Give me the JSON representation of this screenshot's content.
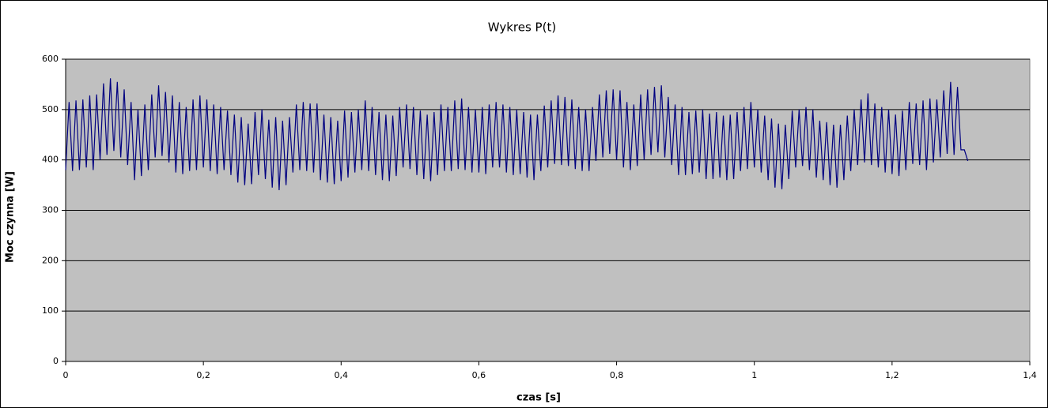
{
  "chart_data": {
    "type": "line",
    "title": "Wykres P(t)",
    "x_label": "czas [s]",
    "y_label": "Moc czynna [W]",
    "color": "#000080",
    "grid": true,
    "xlim": [
      0,
      1.4
    ],
    "xticks": [
      0,
      {
        "value": 0.2,
        "label": "0,2"
      },
      {
        "value": 0.4,
        "label": "0,4"
      },
      {
        "value": 0.6,
        "label": "0,6"
      },
      {
        "value": 0.8,
        "label": "0,8"
      },
      1,
      {
        "value": 1.2,
        "label": "1,2"
      },
      {
        "value": 1.4,
        "label": "1,4"
      }
    ],
    "ylim": [
      0,
      600
    ],
    "yticks": [
      0,
      100,
      200,
      300,
      400,
      500,
      600
    ],
    "x": [
      0,
      0.005,
      0.01,
      0.015,
      0.02,
      0.025,
      0.03,
      0.035,
      0.04,
      0.045,
      0.05,
      0.055,
      0.06,
      0.065,
      0.07,
      0.075,
      0.08,
      0.085,
      0.09,
      0.095,
      0.1,
      0.105,
      0.11,
      0.115,
      0.12,
      0.125,
      0.13,
      0.135,
      0.14,
      0.145,
      0.15,
      0.155,
      0.16,
      0.165,
      0.17,
      0.175,
      0.18,
      0.185,
      0.19,
      0.195,
      0.2,
      0.205,
      0.21,
      0.215,
      0.22,
      0.225,
      0.23,
      0.235,
      0.24,
      0.245,
      0.25,
      0.255,
      0.26,
      0.265,
      0.27,
      0.275,
      0.28,
      0.285,
      0.29,
      0.295,
      0.3,
      0.305,
      0.31,
      0.315,
      0.32,
      0.325,
      0.33,
      0.335,
      0.34,
      0.345,
      0.35,
      0.355,
      0.36,
      0.365,
      0.37,
      0.375,
      0.38,
      0.385,
      0.39,
      0.395,
      0.4,
      0.405,
      0.41,
      0.415,
      0.42,
      0.425,
      0.43,
      0.435,
      0.44,
      0.445,
      0.45,
      0.455,
      0.46,
      0.465,
      0.47,
      0.475,
      0.48,
      0.485,
      0.49,
      0.495,
      0.5,
      0.505,
      0.51,
      0.515,
      0.52,
      0.525,
      0.53,
      0.535,
      0.54,
      0.545,
      0.55,
      0.555,
      0.56,
      0.565,
      0.57,
      0.575,
      0.58,
      0.585,
      0.59,
      0.595,
      0.6,
      0.605,
      0.61,
      0.615,
      0.62,
      0.625,
      0.63,
      0.635,
      0.64,
      0.645,
      0.65,
      0.655,
      0.66,
      0.665,
      0.67,
      0.675,
      0.68,
      0.685,
      0.69,
      0.695,
      0.7,
      0.705,
      0.71,
      0.715,
      0.72,
      0.725,
      0.73,
      0.735,
      0.74,
      0.745,
      0.75,
      0.755,
      0.76,
      0.765,
      0.77,
      0.775,
      0.78,
      0.785,
      0.79,
      0.795,
      0.8,
      0.805,
      0.81,
      0.815,
      0.82,
      0.825,
      0.83,
      0.835,
      0.84,
      0.845,
      0.85,
      0.855,
      0.86,
      0.865,
      0.87,
      0.875,
      0.88,
      0.885,
      0.89,
      0.895,
      0.9,
      0.905,
      0.91,
      0.915,
      0.92,
      0.925,
      0.93,
      0.935,
      0.94,
      0.945,
      0.95,
      0.955,
      0.96,
      0.965,
      0.97,
      0.975,
      0.98,
      0.985,
      0.99,
      0.995,
      1,
      1.005,
      1.01,
      1.015,
      1.02,
      1.025,
      1.03,
      1.035,
      1.04,
      1.045,
      1.05,
      1.055,
      1.06,
      1.065,
      1.07,
      1.075,
      1.08,
      1.085,
      1.09,
      1.095,
      1.1,
      1.105,
      1.11,
      1.115,
      1.12,
      1.125,
      1.13,
      1.135,
      1.14,
      1.145,
      1.15,
      1.155,
      1.16,
      1.165,
      1.17,
      1.175,
      1.18,
      1.185,
      1.19,
      1.195,
      1.2,
      1.205,
      1.21,
      1.215,
      1.22,
      1.225,
      1.23,
      1.235,
      1.24,
      1.245,
      1.25,
      1.255,
      1.26,
      1.265,
      1.27,
      1.275,
      1.28,
      1.285,
      1.29,
      1.295,
      1.3,
      1.305,
      1.31
    ],
    "values": [
      380,
      515,
      378,
      518,
      380,
      520,
      385,
      528,
      380,
      530,
      400,
      552,
      410,
      562,
      418,
      555,
      405,
      540,
      390,
      515,
      360,
      500,
      368,
      510,
      380,
      530,
      405,
      548,
      408,
      535,
      395,
      528,
      375,
      515,
      372,
      505,
      378,
      520,
      380,
      528,
      385,
      520,
      378,
      510,
      372,
      505,
      380,
      498,
      370,
      490,
      355,
      485,
      350,
      472,
      352,
      495,
      370,
      500,
      362,
      480,
      345,
      485,
      340,
      478,
      350,
      485,
      375,
      510,
      380,
      515,
      378,
      512,
      375,
      512,
      360,
      490,
      355,
      485,
      352,
      478,
      358,
      498,
      365,
      495,
      375,
      500,
      380,
      518,
      378,
      505,
      370,
      495,
      360,
      490,
      358,
      488,
      368,
      505,
      385,
      510,
      382,
      505,
      370,
      498,
      362,
      490,
      358,
      495,
      370,
      510,
      378,
      505,
      378,
      518,
      382,
      522,
      380,
      505,
      375,
      500,
      375,
      505,
      372,
      510,
      385,
      515,
      385,
      510,
      375,
      505,
      370,
      500,
      372,
      495,
      365,
      490,
      360,
      490,
      378,
      508,
      385,
      518,
      392,
      528,
      390,
      525,
      388,
      520,
      382,
      505,
      378,
      500,
      378,
      505,
      398,
      530,
      405,
      538,
      412,
      540,
      400,
      538,
      385,
      515,
      380,
      510,
      388,
      530,
      400,
      540,
      410,
      545,
      415,
      548,
      405,
      525,
      390,
      510,
      370,
      505,
      370,
      495,
      372,
      498,
      375,
      500,
      362,
      492,
      362,
      495,
      365,
      488,
      360,
      490,
      362,
      495,
      378,
      505,
      382,
      515,
      385,
      500,
      375,
      488,
      360,
      482,
      345,
      472,
      342,
      470,
      362,
      498,
      385,
      500,
      388,
      505,
      380,
      500,
      365,
      478,
      360,
      475,
      350,
      470,
      345,
      470,
      360,
      488,
      378,
      500,
      390,
      520,
      395,
      532,
      390,
      512,
      385,
      505,
      375,
      500,
      372,
      490,
      368,
      498,
      380,
      515,
      392,
      512,
      390,
      518,
      380,
      522,
      395,
      520,
      405,
      538,
      412,
      555,
      410,
      545,
      420,
      420,
      398
    ]
  }
}
